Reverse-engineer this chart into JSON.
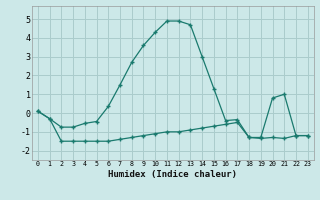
{
  "xlabel": "Humidex (Indice chaleur)",
  "bg_color": "#cce8e8",
  "grid_color": "#aacccc",
  "line_color": "#1a7a6e",
  "xlim": [
    -0.5,
    23.5
  ],
  "ylim": [
    -2.5,
    5.7
  ],
  "xticks": [
    0,
    1,
    2,
    3,
    4,
    5,
    6,
    7,
    8,
    9,
    10,
    11,
    12,
    13,
    14,
    15,
    16,
    17,
    18,
    19,
    20,
    21,
    22,
    23
  ],
  "yticks": [
    -2,
    -1,
    0,
    1,
    2,
    3,
    4,
    5
  ],
  "line1_x": [
    0,
    1,
    2,
    3,
    4,
    5,
    6,
    7,
    8,
    9,
    10,
    11,
    12,
    13,
    14,
    15,
    16,
    17,
    18,
    19,
    20,
    21,
    22,
    23
  ],
  "line1_y": [
    0.1,
    -0.3,
    -1.5,
    -1.5,
    -1.5,
    -1.5,
    -1.5,
    -1.4,
    -1.3,
    -1.2,
    -1.1,
    -1.0,
    -1.0,
    -0.9,
    -0.8,
    -0.7,
    -0.6,
    -0.5,
    -1.3,
    -1.35,
    -1.3,
    -1.35,
    -1.2,
    -1.2
  ],
  "line2_x": [
    0,
    1,
    2,
    3,
    4,
    5,
    6,
    7,
    8,
    9,
    10,
    11,
    12,
    13,
    14,
    15,
    16,
    17,
    18,
    19,
    20,
    21,
    22,
    23
  ],
  "line2_y": [
    0.1,
    -0.3,
    -0.75,
    -0.75,
    -0.55,
    -0.45,
    0.35,
    1.5,
    2.7,
    3.6,
    4.3,
    4.9,
    4.9,
    4.7,
    3.0,
    1.3,
    -0.4,
    -0.35,
    -1.3,
    -1.3,
    0.8,
    1.0,
    -1.2,
    -1.2
  ]
}
